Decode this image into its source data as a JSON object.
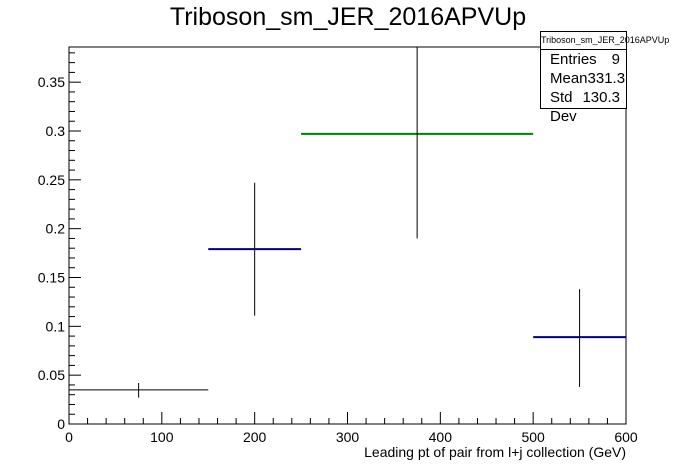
{
  "title": "Triboson_sm_JER_2016APVUp",
  "statbox": {
    "title": "Triboson_sm_JER_2016APVUp",
    "rows": [
      {
        "label": "Entries",
        "value": "9"
      },
      {
        "label": "Mean",
        "value": "331.3"
      },
      {
        "label": "Std Dev",
        "value": "130.3"
      }
    ]
  },
  "chart_data": {
    "type": "scatter",
    "title": "Triboson_sm_JER_2016APVUp",
    "xlabel": "Leading pt of pair from l+j collection (GeV)",
    "ylabel": "",
    "xlim": [
      0,
      600
    ],
    "ylim": [
      0,
      0.386
    ],
    "x_ticks": [
      0,
      100,
      200,
      300,
      400,
      500,
      600
    ],
    "x_tick_labels": [
      "0",
      "100",
      "200",
      "300",
      "400",
      "500",
      "600"
    ],
    "y_ticks": [
      0,
      0.05,
      0.1,
      0.15,
      0.2,
      0.25,
      0.3,
      0.35
    ],
    "y_tick_labels": [
      "0",
      "0.05",
      "0.1",
      "0.15",
      "0.2",
      "0.25",
      "0.3",
      "0.35"
    ],
    "grid": false,
    "bins": [
      {
        "x_low": 0,
        "x_high": 150,
        "y": 0.035,
        "y_err_low": 0.027,
        "y_err_high": 0.042,
        "color": "#000000"
      },
      {
        "x_low": 150,
        "x_high": 250,
        "y": 0.179,
        "y_err_low": 0.111,
        "y_err_high": 0.247,
        "color": "#000080"
      },
      {
        "x_low": 250,
        "x_high": 500,
        "y": 0.297,
        "y_err_low": 0.19,
        "y_err_high": 0.386,
        "color": "#008000"
      },
      {
        "x_low": 500,
        "x_high": 600,
        "y": 0.089,
        "y_err_low": 0.038,
        "y_err_high": 0.138,
        "color": "#000080"
      }
    ]
  }
}
